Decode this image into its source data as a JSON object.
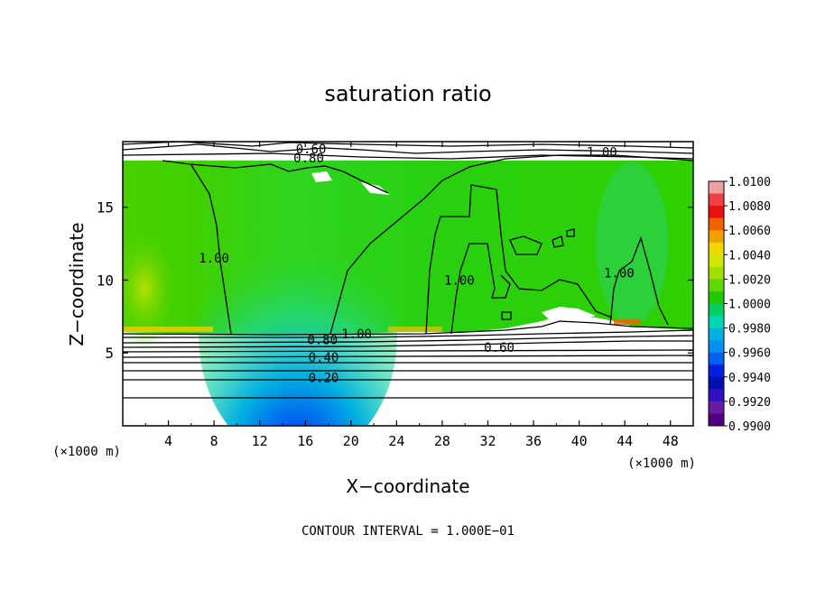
{
  "chart_data": {
    "type": "heatmap",
    "title": "saturation ratio",
    "xlabel": "X−coordinate",
    "ylabel": "Z−coordinate",
    "x_unit_left": "(×1000 m)",
    "x_unit_right": "(×1000 m)",
    "xlim": [
      0,
      50
    ],
    "ylim": [
      0,
      19.5
    ],
    "x_ticks": [
      "4",
      "8",
      "12",
      "16",
      "20",
      "24",
      "28",
      "32",
      "36",
      "40",
      "44",
      "48"
    ],
    "y_ticks": [
      "5",
      "10",
      "15"
    ],
    "footer": "CONTOUR INTERVAL = 1.000E−01",
    "colorbar": {
      "min": 0.99,
      "max": 1.01,
      "labels": [
        "1.0100",
        "1.0080",
        "1.0060",
        "1.0040",
        "1.0020",
        "1.0000",
        "0.9980",
        "0.9960",
        "0.9940",
        "0.9920",
        "0.9900"
      ],
      "colors": [
        "#f08080",
        "#e81010",
        "#f06000",
        "#f0a000",
        "#f0e800",
        "#a0e000",
        "#20c800",
        "#00d8a0",
        "#0090f0",
        "#0010d0",
        "#6a1aa0"
      ]
    },
    "contour_labels": [
      {
        "text": "0.60",
        "x": 33,
        "z": 5.4
      },
      {
        "text": "0.80",
        "x": 17.5,
        "z": 5.9
      },
      {
        "text": "1.00",
        "x": 20.5,
        "z": 6.3
      },
      {
        "text": "0.40",
        "x": 17.6,
        "z": 4.7
      },
      {
        "text": "0.20",
        "x": 17.6,
        "z": 3.3
      },
      {
        "text": "1.00",
        "x": 8,
        "z": 11.5
      },
      {
        "text": "1.00",
        "x": 29.5,
        "z": 10.0
      },
      {
        "text": "1.00",
        "x": 43.5,
        "z": 10.5
      },
      {
        "text": "1.00",
        "x": 42,
        "z": 18.8
      },
      {
        "text": "0.60",
        "x": 16.5,
        "z": 19.0
      },
      {
        "text": "0.80",
        "x": 16.3,
        "z": 18.4
      }
    ]
  }
}
